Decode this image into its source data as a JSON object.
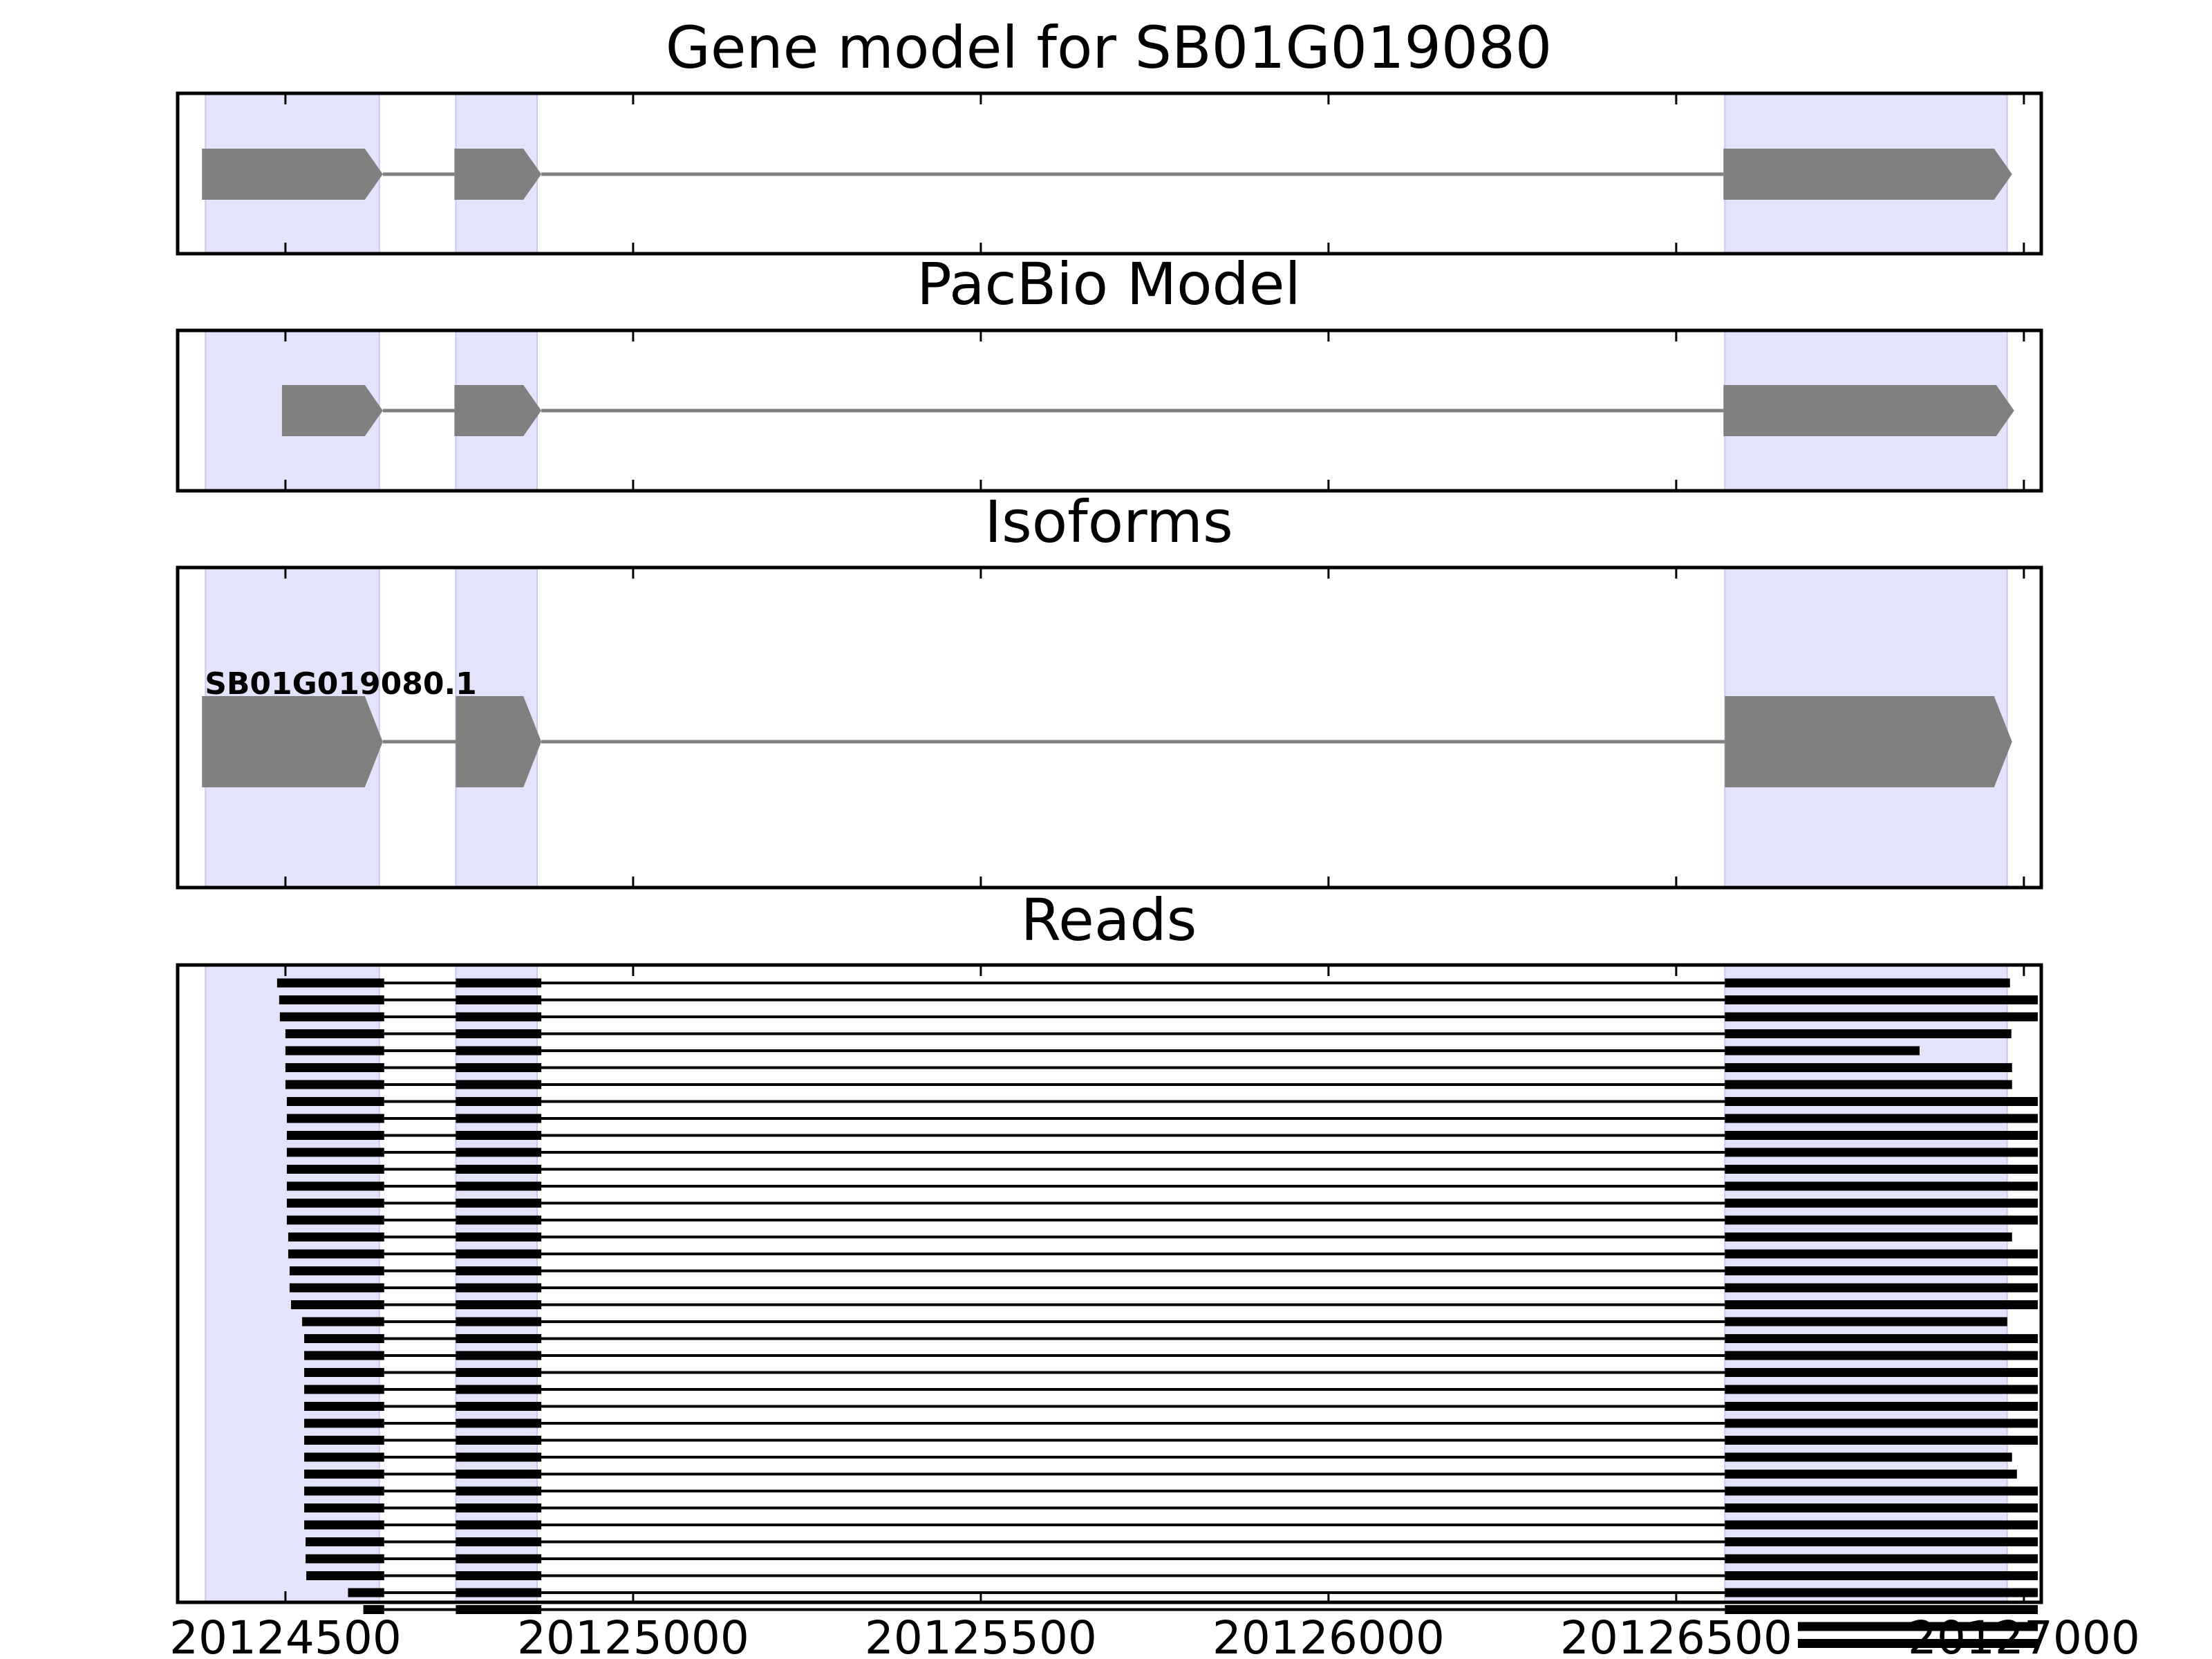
{
  "colors": {
    "exon_fill": "#808080",
    "intron_line": "#808080",
    "highlight_fill": "#e3e3fb",
    "highlight_edge": "#c8c8f0",
    "read_color": "#000000",
    "axis_color": "#000000"
  },
  "x_axis": {
    "range": [
      20124345,
      20127025
    ],
    "ticks": [
      20124500,
      20125000,
      20125500,
      20126000,
      20126500,
      20127000
    ],
    "tick_labels": [
      "20124500",
      "20125000",
      "20125500",
      "20126000",
      "20126500",
      "20127000"
    ]
  },
  "exon_regions": [
    [
      20124385,
      20124635
    ],
    [
      20124745,
      20124862
    ],
    [
      20126570,
      20126976
    ]
  ],
  "panels": [
    {
      "title": "Gene model for SB01G019080",
      "models": [
        {
          "label": "",
          "exons": [
            [
              20124380,
              20124640
            ],
            [
              20124743,
              20124868
            ],
            [
              20126568,
              20126983
            ]
          ]
        }
      ]
    },
    {
      "title": "PacBio Model",
      "models": [
        {
          "label": "",
          "exons": [
            [
              20124495,
              20124640
            ],
            [
              20124743,
              20124868
            ],
            [
              20126568,
              20126986
            ]
          ]
        }
      ]
    },
    {
      "title": "Isoforms",
      "models": [
        {
          "label": "SB01G019080.1",
          "exons": [
            [
              20124380,
              20124640
            ],
            [
              20124745,
              20124868
            ],
            [
              20126570,
              20126983
            ]
          ]
        }
      ]
    },
    {
      "title": "Reads"
    }
  ],
  "reads": {
    "exon2": [
      20124745,
      20124868
    ],
    "exon3_start": 20126570,
    "rows": [
      {
        "start": 20124488,
        "end": 20126980
      },
      {
        "start": 20124491,
        "end": 20127020
      },
      {
        "start": 20124492,
        "end": 20127020
      },
      {
        "start": 20124500,
        "end": 20126982
      },
      {
        "start": 20124500,
        "end": 20126850
      },
      {
        "start": 20124500,
        "end": 20126983
      },
      {
        "start": 20124500,
        "end": 20126983
      },
      {
        "start": 20124502,
        "end": 20127020
      },
      {
        "start": 20124502,
        "end": 20127020
      },
      {
        "start": 20124502,
        "end": 20127020
      },
      {
        "start": 20124502,
        "end": 20127020
      },
      {
        "start": 20124502,
        "end": 20127020
      },
      {
        "start": 20124502,
        "end": 20127020
      },
      {
        "start": 20124502,
        "end": 20127020
      },
      {
        "start": 20124502,
        "end": 20127020
      },
      {
        "start": 20124504,
        "end": 20126983
      },
      {
        "start": 20124504,
        "end": 20127020
      },
      {
        "start": 20124506,
        "end": 20127020
      },
      {
        "start": 20124506,
        "end": 20127020
      },
      {
        "start": 20124508,
        "end": 20127020
      },
      {
        "start": 20124524,
        "end": 20126976
      },
      {
        "start": 20124527,
        "end": 20127020
      },
      {
        "start": 20124527,
        "end": 20127020
      },
      {
        "start": 20124527,
        "end": 20127020
      },
      {
        "start": 20124527,
        "end": 20127020
      },
      {
        "start": 20124527,
        "end": 20127020
      },
      {
        "start": 20124527,
        "end": 20127020
      },
      {
        "start": 20124527,
        "end": 20127020
      },
      {
        "start": 20124527,
        "end": 20126983
      },
      {
        "start": 20124527,
        "end": 20126990
      },
      {
        "start": 20124527,
        "end": 20127020
      },
      {
        "start": 20124527,
        "end": 20127020
      },
      {
        "start": 20124527,
        "end": 20127020
      },
      {
        "start": 20124529,
        "end": 20127020
      },
      {
        "start": 20124529,
        "end": 20127020
      },
      {
        "start": 20124530,
        "end": 20127020
      },
      {
        "start": 20124590,
        "end": 20127020
      },
      {
        "start": 20124612,
        "end": 20127020
      },
      {
        "start": 20126675,
        "end": 20127020,
        "exon3_only": true
      },
      {
        "start": 20126675,
        "end": 20127020,
        "exon3_only": true
      }
    ]
  }
}
